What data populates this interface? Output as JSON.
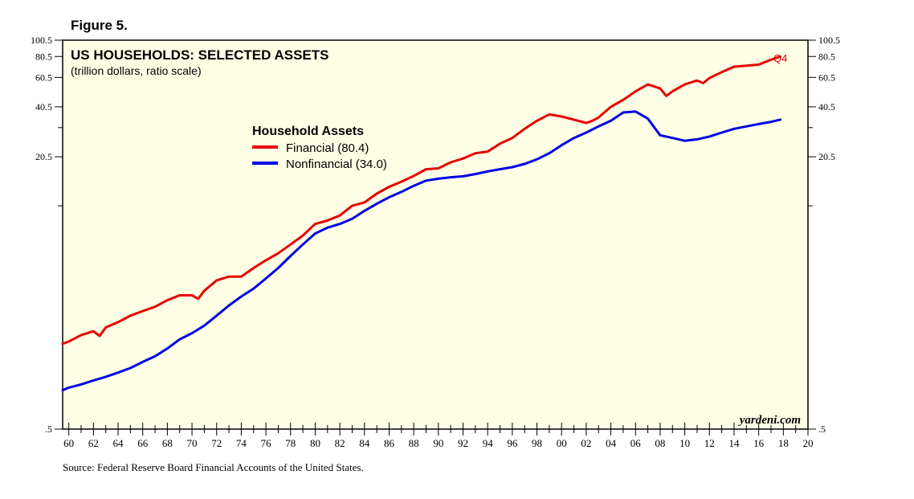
{
  "figure_label": "Figure 5.",
  "source": "Source: Federal Reserve Board Financial Accounts of the United States.",
  "watermark": "yardeni.com",
  "end_label": "Q4",
  "colors": {
    "financial": "#e80000",
    "nonfinancial": "#0000e6",
    "plot_bg": "#ffffe6"
  },
  "chart_data": {
    "type": "line",
    "title": "US HOUSEHOLDS: SELECTED ASSETS",
    "subtitle": "(trillion dollars, ratio scale)",
    "legend_title": "Household Assets",
    "legend": [
      "Financial (80.4)",
      "Nonfinancial (34.0)"
    ],
    "scale": "log",
    "ylim": [
      0.5,
      100.5
    ],
    "xlim": [
      1959.5,
      2020
    ],
    "y_ticks": [
      "100.5",
      "80.5",
      "60.5",
      "40.5",
      "20.5",
      ".5"
    ],
    "y_tick_values": [
      100.5,
      80.5,
      60.5,
      40.5,
      20.5,
      0.5
    ],
    "x_tick_labels": [
      "60",
      "62",
      "64",
      "66",
      "68",
      "70",
      "72",
      "74",
      "76",
      "78",
      "80",
      "82",
      "84",
      "86",
      "88",
      "90",
      "92",
      "94",
      "96",
      "98",
      "00",
      "02",
      "04",
      "06",
      "08",
      "10",
      "12",
      "14",
      "16",
      "18",
      "20"
    ],
    "series": [
      {
        "name": "Financial",
        "x": [
          1959.5,
          1960,
          1961,
          1962,
          1962.5,
          1963,
          1964,
          1965,
          1966,
          1967,
          1968,
          1969,
          1970,
          1970.5,
          1971,
          1972,
          1973,
          1974,
          1975,
          1976,
          1977,
          1978,
          1979,
          1980,
          1981,
          1982,
          1983,
          1984,
          1985,
          1986,
          1987,
          1988,
          1989,
          1990,
          1991,
          1992,
          1993,
          1994,
          1995,
          1996,
          1997,
          1998,
          1999,
          2000,
          2001,
          2002,
          2002.5,
          2003,
          2004,
          2005,
          2006,
          2007,
          2008,
          2008.5,
          2009,
          2010,
          2011,
          2011.5,
          2012,
          2013,
          2014,
          2015,
          2016,
          2017,
          2017.75
        ],
        "y": [
          1.6,
          1.65,
          1.8,
          1.9,
          1.78,
          2.0,
          2.15,
          2.35,
          2.5,
          2.65,
          2.9,
          3.1,
          3.1,
          2.95,
          3.3,
          3.8,
          4.0,
          4.0,
          4.5,
          5.0,
          5.5,
          6.2,
          7.0,
          8.2,
          8.6,
          9.2,
          10.5,
          11.0,
          12.4,
          13.6,
          14.6,
          15.8,
          17.3,
          17.5,
          19.0,
          20.0,
          21.5,
          22.0,
          24.5,
          26.5,
          30.0,
          33.5,
          36.5,
          35.5,
          34.0,
          32.5,
          33.5,
          35.0,
          40.5,
          44.5,
          50.0,
          55.0,
          52.0,
          47.0,
          50.0,
          55.0,
          58.0,
          56.0,
          60.0,
          65.0,
          70.0,
          71.0,
          72.0,
          77.0,
          80.4
        ]
      },
      {
        "name": "Nonfinancial",
        "x": [
          1959.5,
          1960,
          1961,
          1962,
          1963,
          1964,
          1965,
          1966,
          1967,
          1968,
          1969,
          1970,
          1971,
          1972,
          1973,
          1974,
          1975,
          1976,
          1977,
          1978,
          1979,
          1980,
          1981,
          1982,
          1983,
          1984,
          1985,
          1986,
          1987,
          1988,
          1989,
          1990,
          1991,
          1992,
          1993,
          1994,
          1995,
          1996,
          1997,
          1998,
          1999,
          2000,
          2001,
          2002,
          2003,
          2004,
          2005,
          2006,
          2007,
          2008,
          2009,
          2010,
          2011,
          2012,
          2013,
          2014,
          2015,
          2016,
          2017,
          2017.75
        ],
        "y": [
          0.85,
          0.88,
          0.92,
          0.97,
          1.02,
          1.08,
          1.15,
          1.25,
          1.35,
          1.5,
          1.7,
          1.85,
          2.05,
          2.35,
          2.7,
          3.05,
          3.4,
          3.9,
          4.5,
          5.3,
          6.2,
          7.2,
          7.8,
          8.2,
          8.8,
          9.8,
          10.8,
          11.8,
          12.7,
          13.8,
          14.8,
          15.2,
          15.5,
          15.7,
          16.2,
          16.8,
          17.3,
          17.8,
          18.6,
          19.8,
          21.5,
          24.0,
          26.5,
          28.5,
          31.0,
          33.5,
          37.5,
          38.0,
          34.5,
          27.5,
          26.5,
          25.5,
          26.0,
          27.0,
          28.5,
          30.0,
          31.0,
          32.0,
          33.0,
          34.0
        ]
      }
    ]
  }
}
